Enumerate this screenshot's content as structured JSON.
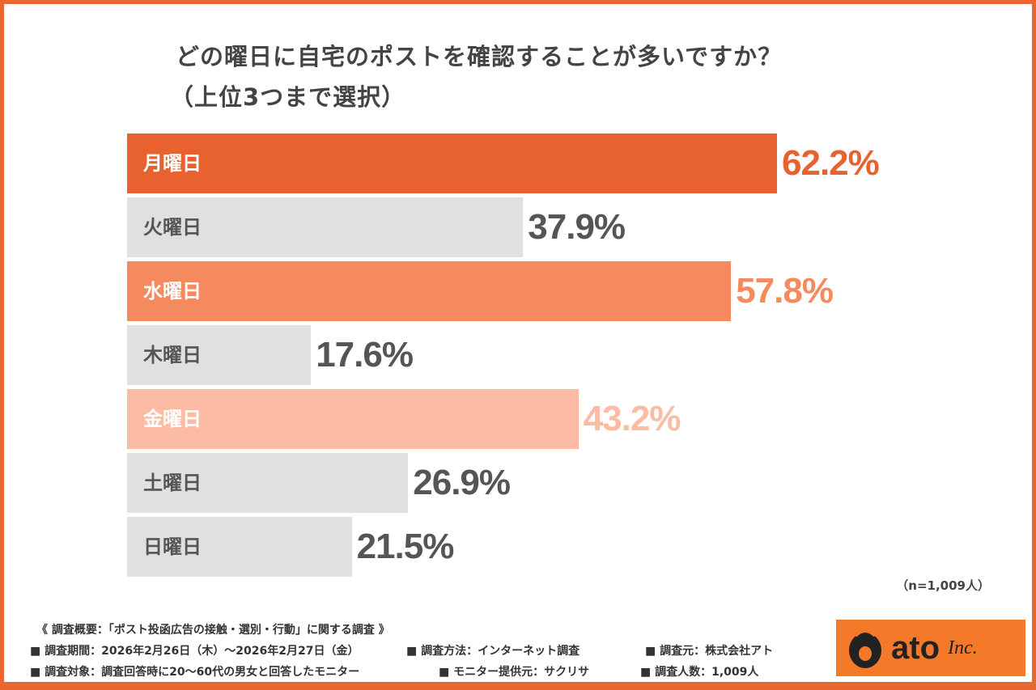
{
  "chart_data": {
    "type": "bar",
    "orientation": "horizontal",
    "title": "どの曜日に自宅のポストを確認することが多いですか？",
    "subtitle": "（上位3つまで選択）",
    "categories": [
      "月曜日",
      "火曜日",
      "水曜日",
      "木曜日",
      "金曜日",
      "土曜日",
      "日曜日"
    ],
    "values": [
      62.2,
      37.9,
      57.8,
      17.6,
      43.2,
      26.9,
      21.5
    ],
    "value_labels": [
      "62.2%",
      "37.9%",
      "57.8%",
      "17.6%",
      "43.2%",
      "26.9%",
      "21.5%"
    ],
    "unit": "%",
    "xlim": [
      0,
      100
    ],
    "grid": false,
    "bar_colors": [
      "#e8622f",
      "#e0e0e0",
      "#f58a5e",
      "#e0e0e0",
      "#fbbca3",
      "#e0e0e0",
      "#e0e0e0"
    ],
    "label_colors": [
      "#ffffff",
      "#555555",
      "#ffffff",
      "#555555",
      "#ffffff",
      "#555555",
      "#555555"
    ],
    "value_colors": [
      "#e8622f",
      "#555555",
      "#f58a5e",
      "#555555",
      "#fbbca3",
      "#555555",
      "#555555"
    ],
    "note": "（n=1,009人）"
  },
  "footer": {
    "heading": "《 調査概要：「ポスト投函広告の接触・選別・行動」に関する調査 》",
    "items": [
      "■ 調査期間：2026年2月26日（木）～2026年2月27日（金）",
      "■ 調査方法：インターネット調査",
      "■ 調査元：株式会社アト",
      "■ 調査対象：調査回答時に20～60代の男女と回答したモニター",
      "■ モニター提供元：サクリサ",
      "■ 調査人数：1,009人"
    ]
  },
  "logo": {
    "text": "ato",
    "suffix": "Inc.",
    "bg": "#f47a2a"
  },
  "colors": {
    "border": "#e8662f"
  }
}
